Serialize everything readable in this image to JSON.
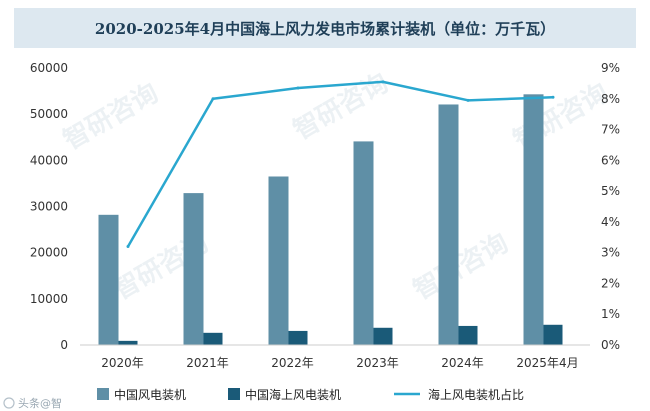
{
  "title": "2020-2025年4月中国海上风力发电市场累计装机（单位：万千瓦）",
  "watermark": "智研咨询",
  "footer_logo_text": "头条@智",
  "colors": {
    "title_bg": "#dde8f0",
    "bar_total": "#5f8fa6",
    "bar_offshore": "#1a5a78",
    "line_share": "#2aa7cf",
    "axis": "#cccccc"
  },
  "chart_data": {
    "type": "bar",
    "categories": [
      "2020年",
      "2021年",
      "2022年",
      "2023年",
      "2024年",
      "2025年4月"
    ],
    "series": [
      {
        "name": "中国风电装机",
        "type": "bar",
        "axis": "left",
        "values": [
          28200,
          32900,
          36500,
          44100,
          52100,
          54300
        ]
      },
      {
        "name": "中国海上风电装机",
        "type": "bar",
        "axis": "left",
        "values": [
          900,
          2640,
          3050,
          3730,
          4130,
          4380
        ]
      },
      {
        "name": "海上风电装机占比",
        "type": "line",
        "axis": "right",
        "values": [
          3.2,
          8.0,
          8.35,
          8.55,
          7.95,
          8.05
        ]
      }
    ],
    "ylim_left": [
      0,
      60000
    ],
    "yticks_left": [
      "0",
      "10000",
      "20000",
      "30000",
      "40000",
      "50000",
      "60000"
    ],
    "ylim_right": [
      0,
      9
    ],
    "yticks_right": [
      "0%",
      "1%",
      "2%",
      "3%",
      "4%",
      "5%",
      "6%",
      "7%",
      "8%",
      "9%"
    ],
    "legend": [
      "中国风电装机",
      "中国海上风电装机",
      "海上风电装机占比"
    ],
    "legend_position": "bottom",
    "grid": false
  }
}
